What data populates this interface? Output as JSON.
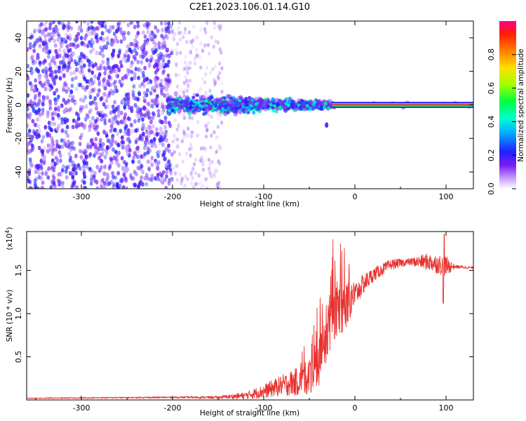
{
  "title": "C2E1.2023.106.01.14.G10",
  "colors": {
    "snr_line": "#e8312e",
    "frame": "#000000",
    "background": "#ffffff"
  },
  "chart_data": [
    {
      "type": "heatmap",
      "name": "spectrogram",
      "xlabel": "Height of straight line (km)",
      "ylabel": "Frequency (Hz)",
      "xlim": [
        -360,
        130
      ],
      "ylim": [
        -50,
        50
      ],
      "xticks": [
        -300,
        -200,
        -100,
        0,
        100
      ],
      "xtick_labels": [
        "-300",
        "-200",
        "-100",
        "0",
        "100"
      ],
      "yticks": [
        -40,
        -20,
        0,
        20,
        40
      ],
      "ytick_labels": [
        "-40",
        "-20",
        "0",
        "20",
        "40"
      ],
      "regions": [
        {
          "description": "broadband noise",
          "x_range": [
            -360,
            -200
          ],
          "freq_range": [
            -50,
            50
          ],
          "amplitude": [
            0.05,
            0.25
          ]
        },
        {
          "description": "sparse faint noise",
          "x_range": [
            -200,
            -145
          ],
          "freq_range": [
            -50,
            50
          ],
          "amplitude": [
            0.02,
            0.1
          ]
        },
        {
          "description": "signal with jitter",
          "x_range": [
            -205,
            -25
          ],
          "freq_range": [
            -8,
            8
          ],
          "amplitude": [
            0.15,
            0.5
          ]
        },
        {
          "description": "stable carrier",
          "x_range": [
            -25,
            130
          ],
          "freq_range": [
            -1,
            1
          ],
          "amplitude": [
            0.7,
            1.0
          ]
        }
      ],
      "colorbar": {
        "label": "Normalized spectral amplitude",
        "range": [
          0,
          1
        ],
        "ticks": [
          0.0,
          0.2,
          0.4,
          0.6,
          0.8
        ],
        "tick_labels": [
          "0.0",
          "0.2",
          "0.4",
          "0.6",
          "0.8"
        ]
      }
    },
    {
      "type": "line",
      "name": "snr",
      "xlabel": "Height of straight line (km)",
      "ylabel": "SNR (10 * v/v)",
      "y_multiplier": "(x10",
      "y_multiplier_exp": "4",
      "y_multiplier_close": ")",
      "xlim": [
        -360,
        130
      ],
      "ylim": [
        0,
        1.95
      ],
      "xticks": [
        -300,
        -200,
        -100,
        0,
        100
      ],
      "xtick_labels": [
        "-300",
        "-200",
        "-100",
        "0",
        "100"
      ],
      "yticks": [
        0.5,
        1.0,
        1.5
      ],
      "ytick_labels": [
        "0.5",
        "1.0",
        "1.5"
      ],
      "trend": [
        {
          "x": -360,
          "y": 0.02
        },
        {
          "x": -200,
          "y": 0.03
        },
        {
          "x": -150,
          "y": 0.03
        },
        {
          "x": -120,
          "y": 0.05
        },
        {
          "x": -100,
          "y": 0.1
        },
        {
          "x": -80,
          "y": 0.17
        },
        {
          "x": -60,
          "y": 0.22
        },
        {
          "x": -45,
          "y": 0.3
        },
        {
          "x": -35,
          "y": 0.55
        },
        {
          "x": -30,
          "y": 0.8
        },
        {
          "x": -25,
          "y": 1.0
        },
        {
          "x": -20,
          "y": 1.05
        },
        {
          "x": -10,
          "y": 1.1
        },
        {
          "x": 0,
          "y": 1.22
        },
        {
          "x": 10,
          "y": 1.35
        },
        {
          "x": 20,
          "y": 1.45
        },
        {
          "x": 40,
          "y": 1.57
        },
        {
          "x": 60,
          "y": 1.6
        },
        {
          "x": 80,
          "y": 1.6
        },
        {
          "x": 100,
          "y": 1.55
        },
        {
          "x": 130,
          "y": 1.53
        }
      ],
      "noise_envelope": [
        {
          "x": -360,
          "amp": 0.005
        },
        {
          "x": -200,
          "amp": 0.01
        },
        {
          "x": -150,
          "amp": 0.015
        },
        {
          "x": -120,
          "amp": 0.04
        },
        {
          "x": -80,
          "amp": 0.12
        },
        {
          "x": -50,
          "amp": 0.2
        },
        {
          "x": -30,
          "amp": 0.35
        },
        {
          "x": -10,
          "amp": 0.3
        },
        {
          "x": 0,
          "amp": 0.15
        },
        {
          "x": 20,
          "amp": 0.08
        },
        {
          "x": 60,
          "amp": 0.04
        },
        {
          "x": 80,
          "amp": 0.1
        },
        {
          "x": 100,
          "amp": 0.12
        },
        {
          "x": 110,
          "amp": 0.02
        },
        {
          "x": 130,
          "amp": 0.015
        }
      ],
      "peak_spike": {
        "x": 98,
        "y": 1.92
      }
    }
  ]
}
